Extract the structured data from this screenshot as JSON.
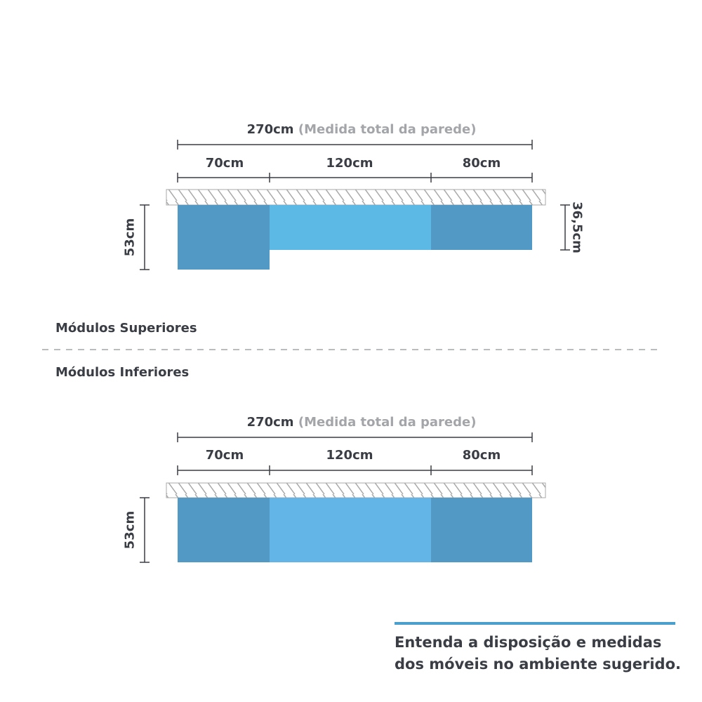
{
  "colors": {
    "module_dark": "#5399c6",
    "module_light_upper": "#5cb8e5",
    "module_light_lower": "#62b5e6",
    "wall_hatch": "#a9a9a9",
    "text": "#3a3d44",
    "muted_text": "#a3a5a8",
    "accent_bar": "#4a9fcc",
    "divider": "#a3a5a8"
  },
  "upper": {
    "total_value": "270cm",
    "total_note": "(Medida total da parede)",
    "segments": [
      "70cm",
      "120cm",
      "80cm"
    ],
    "left_height": "53cm",
    "right_height": "36,5cm"
  },
  "section_titles": {
    "upper": "Módulos Superiores",
    "lower": "Módulos Inferiores"
  },
  "lower": {
    "total_value": "270cm",
    "total_note": "(Medida total da parede)",
    "segments": [
      "70cm",
      "120cm",
      "80cm"
    ],
    "left_height": "53cm"
  },
  "caption": {
    "line1": "Entenda a disposição e medidas",
    "line2": "dos móveis no ambiente sugerido."
  }
}
